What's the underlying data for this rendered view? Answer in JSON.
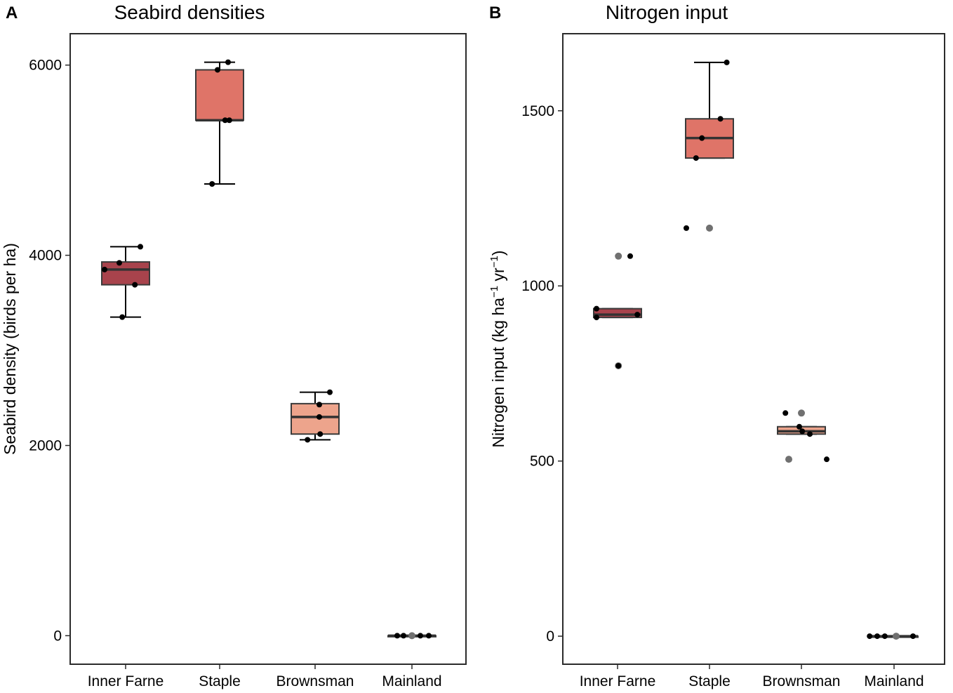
{
  "chart_data": [
    {
      "type": "box",
      "panel_label": "A",
      "title": "Seabird densities",
      "xlabel": "",
      "ylabel": "Seabird density (birds per ha)",
      "ylim": [
        -300,
        6330
      ],
      "yticks": [
        0,
        2000,
        4000,
        6000
      ],
      "tick_labels": [
        "0",
        "2000",
        "4000",
        "6000"
      ],
      "categories": [
        "Inner Farne",
        "Staple",
        "Brownsman",
        "Mainland"
      ],
      "boxes": [
        {
          "category": "Inner Farne",
          "whisker_low": 3350,
          "q1": 3690,
          "median": 3850,
          "q3": 3930,
          "whisker_high": 4090,
          "color": "#a8434c"
        },
        {
          "category": "Staple",
          "whisker_low": 4750,
          "q1": 5420,
          "median": 5420,
          "q3": 5950,
          "whisker_high": 6030,
          "color": "#df7468"
        },
        {
          "category": "Brownsman",
          "whisker_low": 2060,
          "q1": 2120,
          "median": 2300,
          "q3": 2440,
          "whisker_high": 2560,
          "color": "#eda48c"
        },
        {
          "category": "Mainland",
          "whisker_low": 0,
          "q1": 0,
          "median": 0,
          "q3": 0,
          "whisker_high": 0,
          "color": "#f5c5b0"
        }
      ],
      "points": [
        {
          "category": "Inner Farne",
          "offset": -0.5,
          "value": 3850
        },
        {
          "category": "Inner Farne",
          "offset": -0.15,
          "value": 3920
        },
        {
          "category": "Inner Farne",
          "offset": 0.22,
          "value": 3690
        },
        {
          "category": "Inner Farne",
          "offset": 0.35,
          "value": 4090
        },
        {
          "category": "Inner Farne",
          "offset": -0.08,
          "value": 3350
        },
        {
          "category": "Staple",
          "offset": -0.18,
          "value": 4750
        },
        {
          "category": "Staple",
          "offset": -0.05,
          "value": 5950
        },
        {
          "category": "Staple",
          "offset": 0.2,
          "value": 6030
        },
        {
          "category": "Staple",
          "offset": 0.13,
          "value": 5420
        },
        {
          "category": "Staple",
          "offset": 0.23,
          "value": 5420
        },
        {
          "category": "Brownsman",
          "offset": -0.18,
          "value": 2060
        },
        {
          "category": "Brownsman",
          "offset": 0.12,
          "value": 2120
        },
        {
          "category": "Brownsman",
          "offset": 0.1,
          "value": 2300
        },
        {
          "category": "Brownsman",
          "offset": 0.1,
          "value": 2430
        },
        {
          "category": "Brownsman",
          "offset": 0.35,
          "value": 2560
        },
        {
          "category": "Mainland",
          "offset": -0.35,
          "value": 0
        },
        {
          "category": "Mainland",
          "offset": -0.2,
          "value": 0
        },
        {
          "category": "Mainland",
          "offset": 0.0,
          "value": 0,
          "grey": true
        },
        {
          "category": "Mainland",
          "offset": 0.2,
          "value": 0
        },
        {
          "category": "Mainland",
          "offset": 0.4,
          "value": 0
        }
      ]
    },
    {
      "type": "box",
      "panel_label": "B",
      "title": "Nitrogen input",
      "xlabel": "",
      "ylabel": "Nitrogen input (kg ha",
      "ylabel_sup1": "−1",
      "ylabel_mid": " yr",
      "ylabel_sup2": "−1",
      "ylabel_end": ")",
      "ylim": [
        -80,
        1720
      ],
      "yticks": [
        0,
        500,
        1000,
        1500
      ],
      "tick_labels": [
        "0",
        "500",
        "1000",
        "1500"
      ],
      "categories": [
        "Inner Farne",
        "Staple",
        "Brownsman",
        "Mainland"
      ],
      "boxes": [
        {
          "category": "Inner Farne",
          "whisker_low": 910,
          "q1": 910,
          "median": 918,
          "q3": 935,
          "whisker_high": 935,
          "color": "#a8434c"
        },
        {
          "category": "Staple",
          "whisker_low": 1365,
          "q1": 1365,
          "median": 1422,
          "q3": 1477,
          "whisker_high": 1638,
          "color": "#df7468"
        },
        {
          "category": "Brownsman",
          "whisker_low": 577,
          "q1": 577,
          "median": 585,
          "q3": 598,
          "whisker_high": 598,
          "color": "#eda48c"
        },
        {
          "category": "Mainland",
          "whisker_low": 0,
          "q1": 0,
          "median": 0,
          "q3": 0,
          "whisker_high": 0,
          "color": "#f5c5b0"
        }
      ],
      "points": [
        {
          "category": "Inner Farne",
          "offset": -0.5,
          "value": 935
        },
        {
          "category": "Inner Farne",
          "offset": -0.5,
          "value": 910
        },
        {
          "category": "Inner Farne",
          "offset": 0.3,
          "value": 1085
        },
        {
          "category": "Inner Farne",
          "offset": 0.47,
          "value": 918
        },
        {
          "category": "Inner Farne",
          "offset": 0.02,
          "value": 1085,
          "grey": true
        },
        {
          "category": "Inner Farne",
          "offset": 0.02,
          "value": 772,
          "grey": true
        },
        {
          "category": "Inner Farne",
          "offset": 0.02,
          "value": 772
        },
        {
          "category": "Staple",
          "offset": -0.55,
          "value": 1165
        },
        {
          "category": "Staple",
          "offset": -0.32,
          "value": 1365
        },
        {
          "category": "Staple",
          "offset": -0.18,
          "value": 1422
        },
        {
          "category": "Staple",
          "offset": 0.26,
          "value": 1477
        },
        {
          "category": "Staple",
          "offset": 0.41,
          "value": 1638
        },
        {
          "category": "Staple",
          "offset": 0.0,
          "value": 1165,
          "grey": true
        },
        {
          "category": "Brownsman",
          "offset": -0.38,
          "value": 637
        },
        {
          "category": "Brownsman",
          "offset": -0.3,
          "value": 505,
          "grey": true
        },
        {
          "category": "Brownsman",
          "offset": -0.05,
          "value": 598
        },
        {
          "category": "Brownsman",
          "offset": 0.02,
          "value": 585
        },
        {
          "category": "Brownsman",
          "offset": 0.2,
          "value": 577
        },
        {
          "category": "Brownsman",
          "offset": 0.0,
          "value": 637,
          "grey": true
        },
        {
          "category": "Brownsman",
          "offset": 0.6,
          "value": 505
        },
        {
          "category": "Mainland",
          "offset": -0.58,
          "value": 0
        },
        {
          "category": "Mainland",
          "offset": -0.4,
          "value": 0
        },
        {
          "category": "Mainland",
          "offset": -0.22,
          "value": 0
        },
        {
          "category": "Mainland",
          "offset": 0.05,
          "value": 0,
          "grey": true
        },
        {
          "category": "Mainland",
          "offset": 0.45,
          "value": 0
        }
      ]
    }
  ]
}
